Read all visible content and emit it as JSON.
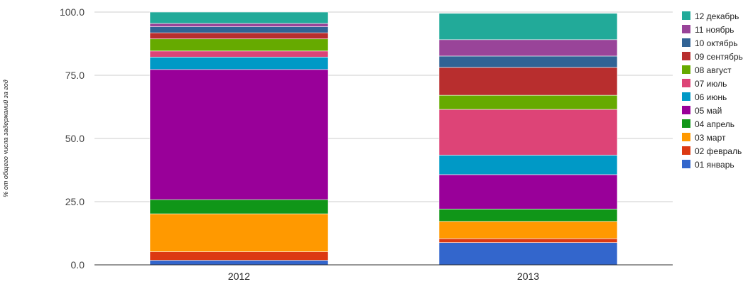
{
  "chart_data": {
    "type": "bar",
    "stacked": true,
    "categories": [
      "2012",
      "2013"
    ],
    "ylabel": "% от общего числа задержаний за год",
    "ylim": [
      0,
      100
    ],
    "yticks": [
      "0.0",
      "25.0",
      "50.0",
      "75.0",
      "100.0"
    ],
    "grid": true,
    "legend_position": "right",
    "series": [
      {
        "name": "01 январь",
        "color": "#3366cc",
        "values": [
          1.8,
          8.8
        ]
      },
      {
        "name": "02 февраль",
        "color": "#dc3912",
        "values": [
          3.4,
          1.6
        ]
      },
      {
        "name": "03 март",
        "color": "#ff9900",
        "values": [
          15.0,
          6.8
        ]
      },
      {
        "name": "04 апрель",
        "color": "#109618",
        "values": [
          5.6,
          4.9
        ]
      },
      {
        "name": "05 май",
        "color": "#990099",
        "values": [
          51.5,
          13.6
        ]
      },
      {
        "name": "06 июнь",
        "color": "#0099c6",
        "values": [
          4.9,
          7.7
        ]
      },
      {
        "name": "07 июль",
        "color": "#dd4477",
        "values": [
          2.4,
          18.1
        ]
      },
      {
        "name": "08 август",
        "color": "#66aa00",
        "values": [
          4.8,
          5.6
        ]
      },
      {
        "name": "09 сентябрь",
        "color": "#b82e2e",
        "values": [
          2.4,
          11.0
        ]
      },
      {
        "name": "10 октябрь",
        "color": "#316395",
        "values": [
          2.4,
          4.5
        ]
      },
      {
        "name": "11 ноябрь",
        "color": "#994499",
        "values": [
          1.3,
          6.5
        ]
      },
      {
        "name": "12 декабрь",
        "color": "#22aa99",
        "values": [
          4.5,
          10.4
        ]
      }
    ]
  }
}
